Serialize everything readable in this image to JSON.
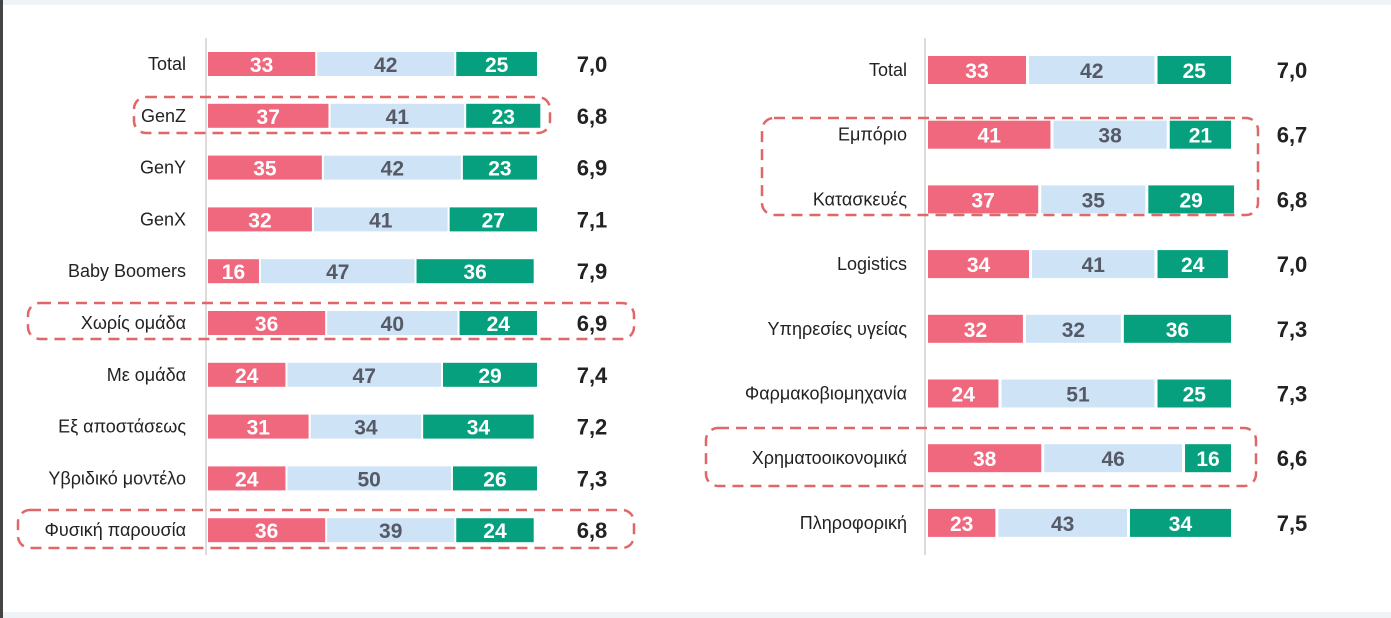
{
  "colors": {
    "negative": "#f0687e",
    "neutral": "#cfe3f7",
    "positive": "#06a07f",
    "neutral_text": "#555a66",
    "light_text": "#ffffff",
    "highlight": "#e06767"
  },
  "chart_data": [
    {
      "type": "bar",
      "stacked": true,
      "orientation": "horizontal",
      "series_names": [
        "negative",
        "neutral",
        "positive"
      ],
      "categories": [
        "Total",
        "GenZ",
        "GenY",
        "GenX",
        "Baby Boomers",
        "Χωρίς ομάδα",
        "Με ομάδα",
        "Εξ αποστάσεως",
        "Υβριδικό μοντέλο",
        "Φυσική παρουσία"
      ],
      "series": [
        {
          "name": "negative",
          "values": [
            33,
            37,
            35,
            32,
            16,
            36,
            24,
            31,
            24,
            36
          ]
        },
        {
          "name": "neutral",
          "values": [
            42,
            41,
            42,
            41,
            47,
            40,
            47,
            34,
            50,
            39
          ]
        },
        {
          "name": "positive",
          "values": [
            25,
            23,
            23,
            27,
            36,
            24,
            29,
            34,
            26,
            24
          ]
        }
      ],
      "scores": [
        "7,0",
        "6,8",
        "6,9",
        "7,1",
        "7,9",
        "6,9",
        "7,4",
        "7,2",
        "7,3",
        "6,8"
      ],
      "highlighted": [
        "GenZ",
        "Χωρίς ομάδα",
        "Φυσική παρουσία"
      ]
    },
    {
      "type": "bar",
      "stacked": true,
      "orientation": "horizontal",
      "series_names": [
        "negative",
        "neutral",
        "positive"
      ],
      "categories": [
        "Total",
        "Εμπόριο",
        "Κατασκευές",
        "Logistics",
        "Υπηρεσίες υγείας",
        "Φαρμακοβιομηχανία",
        "Χρηματοοικονομικά",
        "Πληροφορική"
      ],
      "series": [
        {
          "name": "negative",
          "values": [
            33,
            41,
            37,
            34,
            32,
            24,
            38,
            23
          ]
        },
        {
          "name": "neutral",
          "values": [
            42,
            38,
            35,
            41,
            32,
            51,
            46,
            43
          ]
        },
        {
          "name": "positive",
          "values": [
            25,
            21,
            29,
            24,
            36,
            25,
            16,
            34
          ]
        }
      ],
      "scores": [
        "7,0",
        "6,7",
        "6,8",
        "7,0",
        "7,3",
        "7,3",
        "6,6",
        "7,5"
      ],
      "highlighted_groups": [
        [
          "Εμπόριο",
          "Κατασκευές"
        ],
        [
          "Χρηματοοικονομικά"
        ]
      ]
    }
  ]
}
